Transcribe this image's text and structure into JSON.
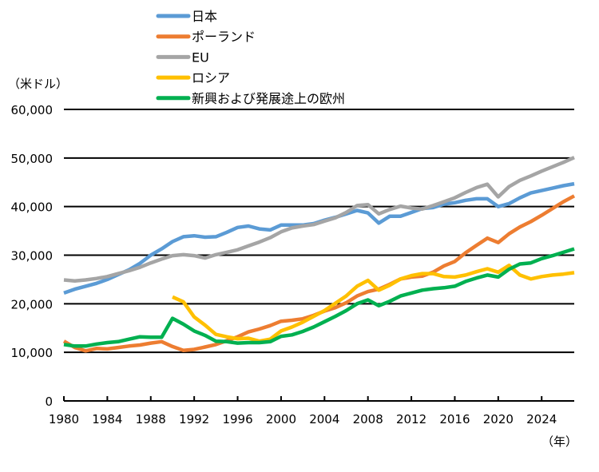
{
  "chart_data": {
    "type": "line",
    "title": "",
    "ylabel": "（米ドル）",
    "xlabel": "（年）",
    "xlim": [
      1980,
      2027
    ],
    "ylim": [
      0,
      60000
    ],
    "yticks": [
      0,
      10000,
      20000,
      30000,
      40000,
      50000,
      60000
    ],
    "ytick_labels": [
      "0",
      "10,000",
      "20,000",
      "30,000",
      "40,000",
      "50,000",
      "60,000"
    ],
    "xticks": [
      1980,
      1984,
      1988,
      1992,
      1996,
      2000,
      2004,
      2008,
      2012,
      2016,
      2020,
      2024
    ],
    "xtick_labels": [
      "1980",
      "1984",
      "1988",
      "1992",
      "1996",
      "2000",
      "2004",
      "2008",
      "2012",
      "2016",
      "2020",
      "2024"
    ],
    "grid": "horizontal",
    "legend_position": "top",
    "series": [
      {
        "name": "日本",
        "color": "#5b9bd5",
        "start": 1980,
        "values": [
          22200,
          23000,
          23600,
          24200,
          25000,
          26000,
          27000,
          28300,
          30000,
          31300,
          32800,
          33800,
          34000,
          33700,
          33800,
          34700,
          35700,
          36000,
          35400,
          35200,
          36200,
          36200,
          36200,
          36500,
          37200,
          37800,
          38500,
          39200,
          38700,
          36600,
          38000,
          38000,
          38800,
          39600,
          39800,
          40500,
          40800,
          41300,
          41600,
          41600,
          40000,
          40600,
          41800,
          42800,
          43300,
          43800,
          44300,
          44700
        ]
      },
      {
        "name": "ポーランド",
        "color": "#ed7d31",
        "start": 1980,
        "values": [
          12300,
          11000,
          10300,
          10800,
          10700,
          11000,
          11300,
          11500,
          11900,
          12200,
          11200,
          10400,
          10600,
          11100,
          11600,
          12400,
          13200,
          14200,
          14800,
          15500,
          16400,
          16600,
          16900,
          17600,
          18500,
          19200,
          20200,
          21600,
          22500,
          23000,
          24000,
          25100,
          25500,
          25700,
          26500,
          27800,
          28700,
          30500,
          32000,
          33500,
          32600,
          34400,
          35800,
          36900,
          38200,
          39600,
          41000,
          42200
        ]
      },
      {
        "name": "EU",
        "color": "#a5a5a5",
        "start": 1980,
        "values": [
          24900,
          24700,
          24900,
          25200,
          25600,
          26200,
          26800,
          27500,
          28400,
          29200,
          29900,
          30100,
          29900,
          29400,
          30100,
          30600,
          31100,
          31900,
          32700,
          33600,
          34800,
          35600,
          36000,
          36300,
          37000,
          37700,
          38800,
          40200,
          40400,
          38500,
          39400,
          40100,
          39700,
          39500,
          40200,
          41000,
          41800,
          42900,
          43900,
          44600,
          42000,
          44100,
          45400,
          46300,
          47300,
          48200,
          49100,
          50100
        ]
      },
      {
        "name": "ロシア",
        "color": "#ffc000",
        "start": 1990,
        "values": [
          21400,
          20400,
          17300,
          15600,
          13700,
          13200,
          12800,
          12900,
          12300,
          12700,
          14400,
          15200,
          16200,
          17400,
          18600,
          20100,
          21600,
          23600,
          24800,
          22800,
          23800,
          25100,
          25800,
          26200,
          26200,
          25600,
          25500,
          25900,
          26600,
          27200,
          26500,
          27900,
          25900,
          25100,
          25600,
          25900,
          26100,
          26400
        ]
      },
      {
        "name": "新興および発展途上の欧州",
        "color": "#00b050",
        "start": 1980,
        "values": [
          11600,
          11300,
          11300,
          11700,
          12000,
          12200,
          12700,
          13200,
          13100,
          13100,
          17000,
          15800,
          14400,
          13500,
          12300,
          12200,
          11900,
          12000,
          12000,
          12200,
          13300,
          13600,
          14300,
          15200,
          16300,
          17400,
          18600,
          20000,
          20800,
          19600,
          20500,
          21600,
          22200,
          22800,
          23100,
          23300,
          23600,
          24600,
          25300,
          25900,
          25500,
          27100,
          28200,
          28400,
          29300,
          29900,
          30600,
          31300
        ]
      }
    ]
  }
}
